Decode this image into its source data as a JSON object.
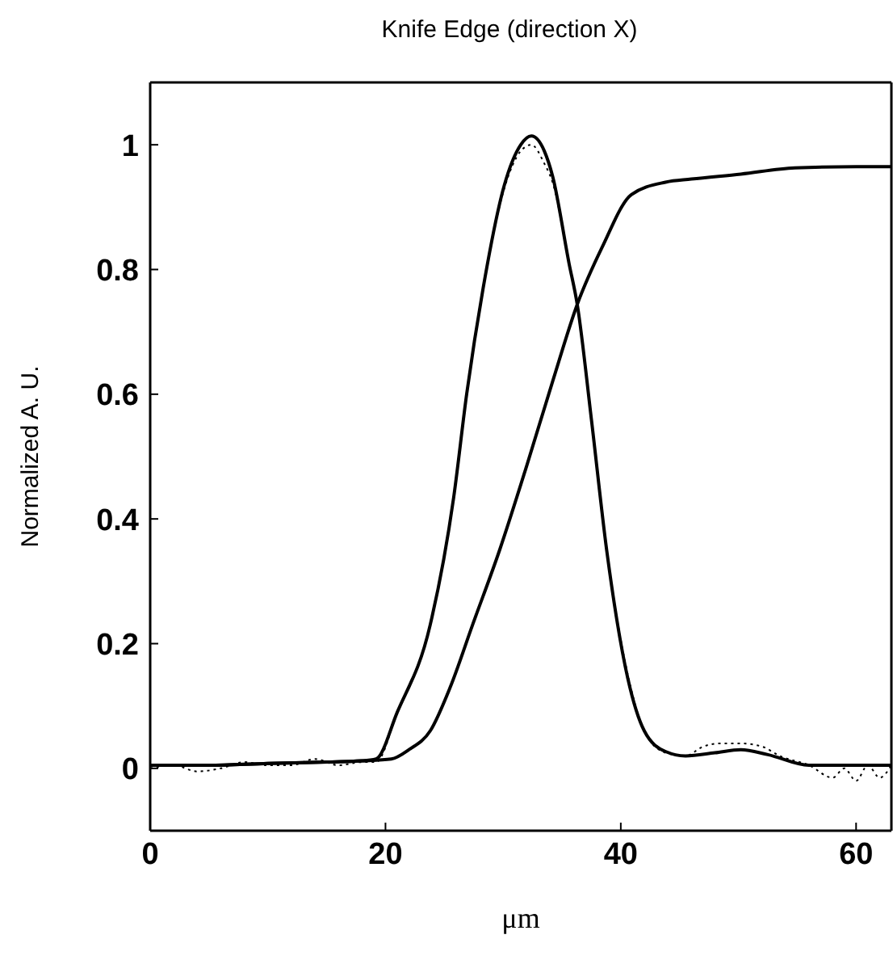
{
  "chart_data": {
    "type": "line",
    "title": "Knife Edge (direction X)",
    "xlabel": "μm",
    "ylabel": "Normalized A. U.",
    "xlim": [
      0,
      63
    ],
    "ylim": [
      -0.1,
      1.1
    ],
    "xticks": [
      0,
      20,
      40,
      60
    ],
    "yticks": [
      0,
      0.2,
      0.4,
      0.6,
      0.8,
      1
    ],
    "marker": "none",
    "series": [
      {
        "color": "#000000",
        "line_style": "dotted",
        "x": [
          0,
          2,
          4,
          6,
          8,
          10,
          12,
          14,
          16,
          18,
          19.2,
          21,
          23.8,
          25.8,
          26.9,
          28.3,
          30.1,
          31.5,
          32.4,
          33.5,
          34.2,
          35.6,
          36.3,
          37.5,
          38.8,
          40.6,
          42,
          43.8,
          45.5,
          47,
          48.5,
          50.2,
          52,
          53.5,
          56,
          58,
          59,
          60,
          61,
          62,
          63
        ],
        "values": [
          0,
          0.005,
          -0.005,
          0,
          0.01,
          0.005,
          0.005,
          0.015,
          0.005,
          0.01,
          0.01,
          0.09,
          0.23,
          0.435,
          0.6,
          0.77,
          0.93,
          0.99,
          1.0,
          0.97,
          0.94,
          0.81,
          0.744,
          0.56,
          0.35,
          0.15,
          0.06,
          0.025,
          0.02,
          0.035,
          0.04,
          0.04,
          0.035,
          0.02,
          0.005,
          -0.015,
          0.0,
          -0.02,
          0.005,
          -0.015,
          0.005
        ]
      },
      {
        "color": "#000000",
        "line_style": "solid",
        "x": [
          0,
          5,
          10,
          15,
          18,
          19.2,
          21,
          23.8,
          25.8,
          26.9,
          28.3,
          30.1,
          31.5,
          32.4,
          33.5,
          34.2,
          35.6,
          36.3,
          37.5,
          38.8,
          40.6,
          42,
          43.8,
          45.5,
          48,
          50.2,
          52.5,
          56,
          60,
          63
        ],
        "values": [
          0.005,
          0.005,
          0.008,
          0.01,
          0.012,
          0.015,
          0.09,
          0.23,
          0.435,
          0.6,
          0.77,
          0.935,
          1.0,
          1.014,
          0.99,
          0.95,
          0.81,
          0.744,
          0.56,
          0.35,
          0.144,
          0.06,
          0.027,
          0.02,
          0.025,
          0.03,
          0.022,
          0.005,
          0.005,
          0.005
        ]
      },
      {
        "color": "#000000",
        "line_style": "solid",
        "x": [
          0,
          5,
          10,
          15,
          18,
          20.5,
          22,
          23.8,
          25.5,
          27.4,
          29.7,
          32,
          34.2,
          36.3,
          38.4,
          40.9,
          43.8,
          46,
          50.2,
          54.8,
          60,
          63
        ],
        "values": [
          0.005,
          0.005,
          0.008,
          0.01,
          0.012,
          0.015,
          0.03,
          0.06,
          0.13,
          0.23,
          0.35,
          0.485,
          0.62,
          0.744,
          0.835,
          0.92,
          0.94,
          0.945,
          0.953,
          0.963,
          0.965,
          0.965
        ]
      }
    ]
  }
}
